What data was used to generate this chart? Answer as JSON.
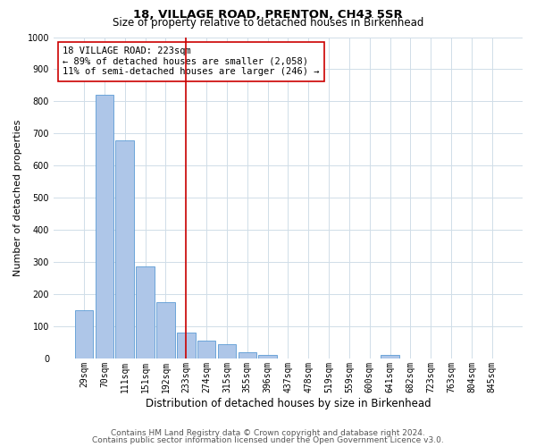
{
  "title": "18, VILLAGE ROAD, PRENTON, CH43 5SR",
  "subtitle": "Size of property relative to detached houses in Birkenhead",
  "xlabel": "Distribution of detached houses by size in Birkenhead",
  "ylabel": "Number of detached properties",
  "bin_labels": [
    "29sqm",
    "70sqm",
    "111sqm",
    "151sqm",
    "192sqm",
    "233sqm",
    "274sqm",
    "315sqm",
    "355sqm",
    "396sqm",
    "437sqm",
    "478sqm",
    "519sqm",
    "559sqm",
    "600sqm",
    "641sqm",
    "682sqm",
    "723sqm",
    "763sqm",
    "804sqm",
    "845sqm"
  ],
  "bar_values": [
    150,
    820,
    680,
    285,
    175,
    80,
    55,
    45,
    20,
    10,
    0,
    0,
    0,
    0,
    0,
    10,
    0,
    0,
    0,
    0,
    0
  ],
  "bar_color": "#aec6e8",
  "bar_edge_color": "#5b9bd5",
  "vline_x": 5.0,
  "vline_color": "#cc0000",
  "annotation_text": "18 VILLAGE ROAD: 223sqm\n← 89% of detached houses are smaller (2,058)\n11% of semi-detached houses are larger (246) →",
  "annotation_box_color": "#ffffff",
  "annotation_box_edge_color": "#cc0000",
  "ylim": [
    0,
    1000
  ],
  "yticks": [
    0,
    100,
    200,
    300,
    400,
    500,
    600,
    700,
    800,
    900,
    1000
  ],
  "footnote1": "Contains HM Land Registry data © Crown copyright and database right 2024.",
  "footnote2": "Contains public sector information licensed under the Open Government Licence v3.0.",
  "title_fontsize": 9.5,
  "subtitle_fontsize": 8.5,
  "xlabel_fontsize": 8.5,
  "ylabel_fontsize": 8,
  "tick_fontsize": 7,
  "annotation_fontsize": 7.5,
  "footnote_fontsize": 6.5,
  "background_color": "#ffffff",
  "grid_color": "#d0dde8"
}
